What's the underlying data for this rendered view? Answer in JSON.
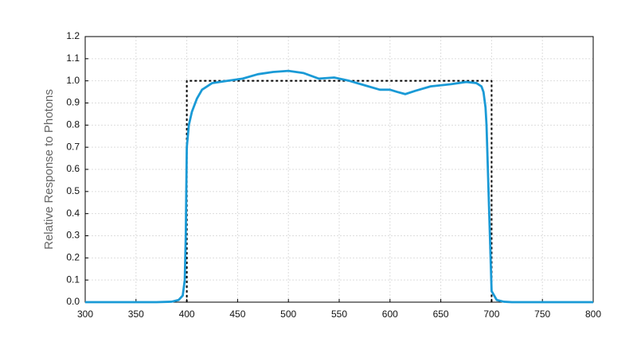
{
  "chart_data": {
    "type": "line",
    "ylabel": "Relative Response to Photons",
    "xlim": [
      300,
      800
    ],
    "ylim": [
      0,
      1.2
    ],
    "xticks": [
      300,
      350,
      400,
      450,
      500,
      550,
      600,
      650,
      700,
      750,
      800
    ],
    "yticks": [
      {
        "value": 0,
        "label": "0.0"
      },
      0.1,
      0.2,
      0.3,
      0.4,
      0.5,
      0.6,
      0.7,
      0.8,
      0.9,
      {
        "value": 1,
        "label": "1.0"
      },
      1.1,
      1.2
    ],
    "grid": true,
    "series": [
      {
        "color": "#1a9ad6",
        "style": "solid",
        "x": [
          300,
          370,
          385,
          392,
          396,
          398,
          399,
          399.5,
          400,
          402,
          405,
          410,
          415,
          425,
          440,
          455,
          470,
          485,
          500,
          515,
          530,
          545,
          560,
          575,
          590,
          600,
          607,
          615,
          625,
          640,
          660,
          675,
          685,
          690,
          692,
          694,
          695,
          697,
          699,
          700,
          705,
          712,
          720,
          800
        ],
        "values": [
          0,
          0,
          0.002,
          0.01,
          0.03,
          0.1,
          0.3,
          0.5,
          0.7,
          0.8,
          0.86,
          0.92,
          0.96,
          0.99,
          1.0,
          1.01,
          1.03,
          1.04,
          1.045,
          1.035,
          1.01,
          1.015,
          1.0,
          0.98,
          0.96,
          0.96,
          0.95,
          0.94,
          0.955,
          0.975,
          0.985,
          0.995,
          0.99,
          0.975,
          0.95,
          0.88,
          0.8,
          0.5,
          0.2,
          0.05,
          0.01,
          0.002,
          0,
          0
        ]
      },
      {
        "color": "#000000",
        "style": "dashed",
        "x": [
          400,
          400,
          700,
          700
        ],
        "values": [
          0,
          1,
          1,
          0
        ]
      }
    ]
  }
}
